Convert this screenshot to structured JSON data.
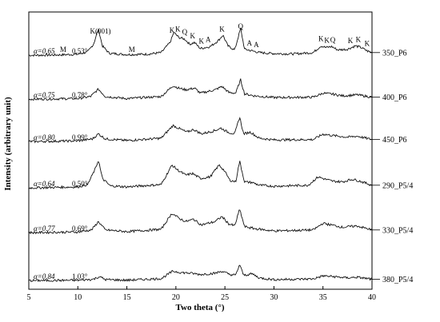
{
  "chart_data": {
    "type": "line",
    "title": "",
    "xlabel": "Two theta (°)",
    "ylabel": "Intensity (arbitrary unit)",
    "xlim": [
      5,
      40
    ],
    "xticks": [
      5,
      10,
      15,
      20,
      25,
      30,
      35,
      40
    ],
    "grid": false,
    "legend": "inline-right",
    "series": [
      {
        "name": "350_P6",
        "alpha": "α=0.65",
        "angle": "0.53°",
        "points": [
          [
            5,
            0.02
          ],
          [
            8,
            0.03
          ],
          [
            10,
            0.05
          ],
          [
            11,
            0.12
          ],
          [
            11.6,
            0.35
          ],
          [
            12.1,
            0.8
          ],
          [
            12.5,
            0.3
          ],
          [
            13.2,
            0.08
          ],
          [
            15,
            0.04
          ],
          [
            17,
            0.05
          ],
          [
            18.5,
            0.1
          ],
          [
            19.4,
            0.4
          ],
          [
            19.8,
            0.7
          ],
          [
            20.3,
            0.55
          ],
          [
            20.9,
            0.5
          ],
          [
            21.4,
            0.35
          ],
          [
            21.9,
            0.4
          ],
          [
            22.5,
            0.22
          ],
          [
            23.5,
            0.28
          ],
          [
            24.3,
            0.45
          ],
          [
            24.8,
            0.62
          ],
          [
            25.3,
            0.3
          ],
          [
            26.0,
            0.18
          ],
          [
            26.6,
            0.82
          ],
          [
            27.0,
            0.2
          ],
          [
            27.8,
            0.15
          ],
          [
            28.5,
            0.1
          ],
          [
            30,
            0.07
          ],
          [
            32,
            0.06
          ],
          [
            34,
            0.1
          ],
          [
            34.8,
            0.3
          ],
          [
            35.3,
            0.25
          ],
          [
            35.9,
            0.28
          ],
          [
            36.5,
            0.18
          ],
          [
            37.5,
            0.2
          ],
          [
            38.3,
            0.3
          ],
          [
            38.9,
            0.25
          ],
          [
            39.5,
            0.15
          ],
          [
            40,
            0.1
          ]
        ]
      },
      {
        "name": "400_P6",
        "alpha": "α=0.75",
        "angle": "0.78°",
        "points": [
          [
            5,
            0.02
          ],
          [
            10,
            0.04
          ],
          [
            11.3,
            0.1
          ],
          [
            12.1,
            0.32
          ],
          [
            12.8,
            0.1
          ],
          [
            15,
            0.04
          ],
          [
            18.5,
            0.1
          ],
          [
            19.7,
            0.42
          ],
          [
            20.3,
            0.35
          ],
          [
            21,
            0.3
          ],
          [
            21.9,
            0.35
          ],
          [
            22.5,
            0.2
          ],
          [
            24.0,
            0.3
          ],
          [
            24.7,
            0.4
          ],
          [
            25.4,
            0.22
          ],
          [
            26.1,
            0.2
          ],
          [
            26.6,
            0.6
          ],
          [
            27.0,
            0.18
          ],
          [
            28,
            0.12
          ],
          [
            30,
            0.07
          ],
          [
            34,
            0.08
          ],
          [
            35,
            0.2
          ],
          [
            36,
            0.17
          ],
          [
            37,
            0.12
          ],
          [
            38.5,
            0.15
          ],
          [
            40,
            0.08
          ]
        ]
      },
      {
        "name": "450_P6",
        "alpha": "α=0.80",
        "angle": "0.99°",
        "points": [
          [
            5,
            0.02
          ],
          [
            10,
            0.04
          ],
          [
            11.5,
            0.1
          ],
          [
            12.1,
            0.25
          ],
          [
            12.8,
            0.1
          ],
          [
            15,
            0.05
          ],
          [
            18.5,
            0.12
          ],
          [
            19.7,
            0.5
          ],
          [
            20.4,
            0.4
          ],
          [
            21.1,
            0.3
          ],
          [
            21.8,
            0.38
          ],
          [
            22.6,
            0.25
          ],
          [
            24.0,
            0.35
          ],
          [
            24.6,
            0.42
          ],
          [
            25.3,
            0.3
          ],
          [
            26.0,
            0.25
          ],
          [
            26.5,
            0.75
          ],
          [
            26.9,
            0.25
          ],
          [
            27.6,
            0.3
          ],
          [
            28.5,
            0.12
          ],
          [
            30,
            0.07
          ],
          [
            34,
            0.08
          ],
          [
            35,
            0.24
          ],
          [
            36,
            0.2
          ],
          [
            37.5,
            0.15
          ],
          [
            38.5,
            0.18
          ],
          [
            40,
            0.08
          ]
        ]
      },
      {
        "name": "290_P5/4",
        "alpha": "α=0.64",
        "angle": "0.50°",
        "points": [
          [
            5,
            0.02
          ],
          [
            10,
            0.05
          ],
          [
            11.0,
            0.12
          ],
          [
            11.8,
            0.6
          ],
          [
            12.1,
            0.85
          ],
          [
            12.5,
            0.3
          ],
          [
            13.3,
            0.08
          ],
          [
            15,
            0.05
          ],
          [
            18.5,
            0.12
          ],
          [
            19.6,
            0.7
          ],
          [
            20.2,
            0.55
          ],
          [
            21.0,
            0.4
          ],
          [
            21.7,
            0.45
          ],
          [
            22.5,
            0.3
          ],
          [
            23.5,
            0.35
          ],
          [
            24.4,
            0.7
          ],
          [
            24.9,
            0.55
          ],
          [
            25.5,
            0.25
          ],
          [
            26.1,
            0.2
          ],
          [
            26.5,
            0.82
          ],
          [
            27.0,
            0.2
          ],
          [
            27.8,
            0.18
          ],
          [
            28.5,
            0.1
          ],
          [
            30,
            0.07
          ],
          [
            33.5,
            0.1
          ],
          [
            34.5,
            0.35
          ],
          [
            35.2,
            0.28
          ],
          [
            36,
            0.22
          ],
          [
            37,
            0.2
          ],
          [
            38,
            0.28
          ],
          [
            38.8,
            0.22
          ],
          [
            40,
            0.1
          ]
        ]
      },
      {
        "name": "330_P5/4",
        "alpha": "α=0.77",
        "angle": "0.69°",
        "points": [
          [
            5,
            0.02
          ],
          [
            10,
            0.04
          ],
          [
            11.4,
            0.1
          ],
          [
            12.1,
            0.35
          ],
          [
            12.8,
            0.1
          ],
          [
            15,
            0.05
          ],
          [
            18.5,
            0.12
          ],
          [
            19.6,
            0.6
          ],
          [
            20.3,
            0.45
          ],
          [
            21.0,
            0.35
          ],
          [
            21.8,
            0.42
          ],
          [
            22.6,
            0.25
          ],
          [
            24.0,
            0.35
          ],
          [
            24.7,
            0.5
          ],
          [
            25.4,
            0.28
          ],
          [
            26.0,
            0.22
          ],
          [
            26.5,
            0.72
          ],
          [
            27.0,
            0.2
          ],
          [
            28,
            0.14
          ],
          [
            30,
            0.07
          ],
          [
            34,
            0.1
          ],
          [
            35,
            0.3
          ],
          [
            36,
            0.24
          ],
          [
            37,
            0.18
          ],
          [
            38.5,
            0.22
          ],
          [
            40,
            0.1
          ]
        ]
      },
      {
        "name": "380_P5/4",
        "alpha": "α=0.84",
        "angle": "1.03°",
        "points": [
          [
            5,
            0.02
          ],
          [
            10,
            0.03
          ],
          [
            11.6,
            0.06
          ],
          [
            12.2,
            0.14
          ],
          [
            12.8,
            0.05
          ],
          [
            15,
            0.03
          ],
          [
            18.5,
            0.08
          ],
          [
            19.7,
            0.3
          ],
          [
            20.5,
            0.26
          ],
          [
            21.5,
            0.24
          ],
          [
            22.5,
            0.2
          ],
          [
            24,
            0.24
          ],
          [
            24.7,
            0.3
          ],
          [
            25.5,
            0.2
          ],
          [
            26.1,
            0.18
          ],
          [
            26.5,
            0.5
          ],
          [
            26.9,
            0.18
          ],
          [
            27.8,
            0.22
          ],
          [
            28.5,
            0.1
          ],
          [
            30,
            0.05
          ],
          [
            34,
            0.07
          ],
          [
            35,
            0.16
          ],
          [
            36,
            0.14
          ],
          [
            37.5,
            0.1
          ],
          [
            38.5,
            0.12
          ],
          [
            40,
            0.06
          ]
        ]
      }
    ],
    "annotations": [
      {
        "text": "M",
        "x": 8.5
      },
      {
        "text": "K(001)",
        "x": 12.3
      },
      {
        "text": "M",
        "x": 15.5
      },
      {
        "text": "K",
        "x": 19.6
      },
      {
        "text": "K",
        "x": 20.2
      },
      {
        "text": "Q",
        "x": 20.9
      },
      {
        "text": "K",
        "x": 21.7
      },
      {
        "text": "K",
        "x": 22.6
      },
      {
        "text": "A",
        "x": 23.3
      },
      {
        "text": "K",
        "x": 24.7
      },
      {
        "text": "Q",
        "x": 26.6
      },
      {
        "text": "A",
        "x": 27.5
      },
      {
        "text": "A",
        "x": 28.2
      },
      {
        "text": "K",
        "x": 34.8
      },
      {
        "text": "K",
        "x": 35.4
      },
      {
        "text": "Q",
        "x": 36.0
      },
      {
        "text": "K",
        "x": 37.8
      },
      {
        "text": "K",
        "x": 38.6
      },
      {
        "text": "K",
        "x": 39.5
      }
    ]
  }
}
